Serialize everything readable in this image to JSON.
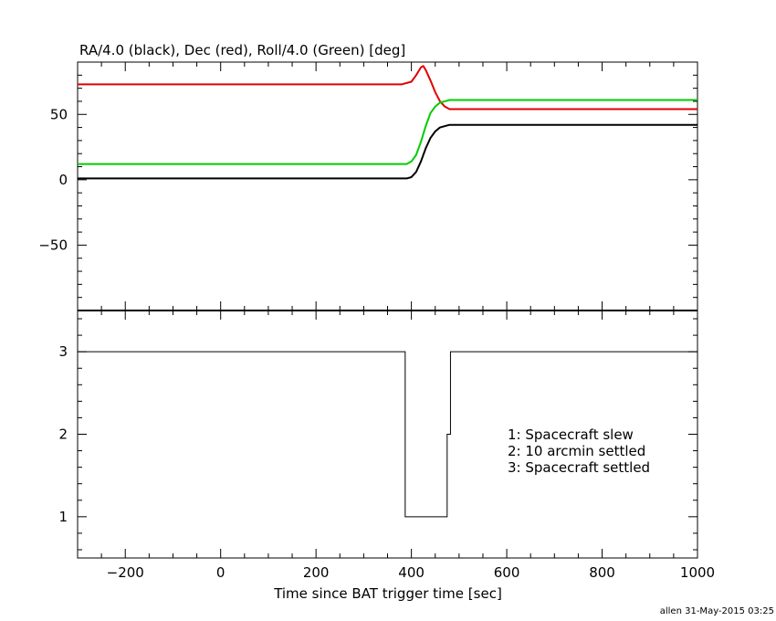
{
  "chart_data": [
    {
      "type": "line",
      "title": "RA/4.0 (black), Dec (red), Roll/4.0 (Green) [deg]",
      "xlim": [
        -300,
        1000
      ],
      "ylim": [
        -100,
        90
      ],
      "yticks": [
        -50,
        0,
        50
      ],
      "series": [
        {
          "color": "#000000",
          "x": [
            -300,
            380,
            390,
            400,
            410,
            420,
            430,
            440,
            450,
            460,
            480,
            500,
            1000
          ],
          "y": [
            1,
            1,
            1,
            2,
            6,
            14,
            24,
            32,
            37,
            40,
            42,
            42,
            42
          ]
        },
        {
          "color": "#e00000",
          "x": [
            -300,
            380,
            400,
            410,
            420,
            425,
            430,
            440,
            450,
            460,
            470,
            480,
            500,
            1000
          ],
          "y": [
            73,
            73,
            75,
            80,
            86,
            87,
            84,
            76,
            67,
            60,
            56,
            54,
            54,
            54
          ]
        },
        {
          "color": "#00cc00",
          "x": [
            -300,
            380,
            390,
            400,
            410,
            420,
            430,
            440,
            450,
            460,
            470,
            480,
            500,
            1000
          ],
          "y": [
            12,
            12,
            12,
            14,
            19,
            29,
            41,
            51,
            56,
            59,
            60,
            61,
            61,
            61
          ]
        }
      ]
    },
    {
      "type": "line",
      "xlabel": "Time since BAT trigger time [sec]",
      "xlim": [
        -300,
        1000
      ],
      "xticks": [
        -200,
        0,
        200,
        400,
        600,
        800,
        1000
      ],
      "ylim": [
        0.5,
        3.5
      ],
      "yticks": [
        1,
        2,
        3
      ],
      "series": [
        {
          "color": "#000000",
          "x": [
            -300,
            387,
            387,
            475,
            475,
            482,
            482,
            1000
          ],
          "y": [
            3,
            3,
            1,
            1,
            2,
            2,
            3,
            3
          ]
        }
      ],
      "legend": [
        "1: Spacecraft slew",
        "2: 10 arcmin settled",
        "3: Spacecraft settled"
      ]
    }
  ],
  "footer": "allen 31-May-2015 03:25"
}
